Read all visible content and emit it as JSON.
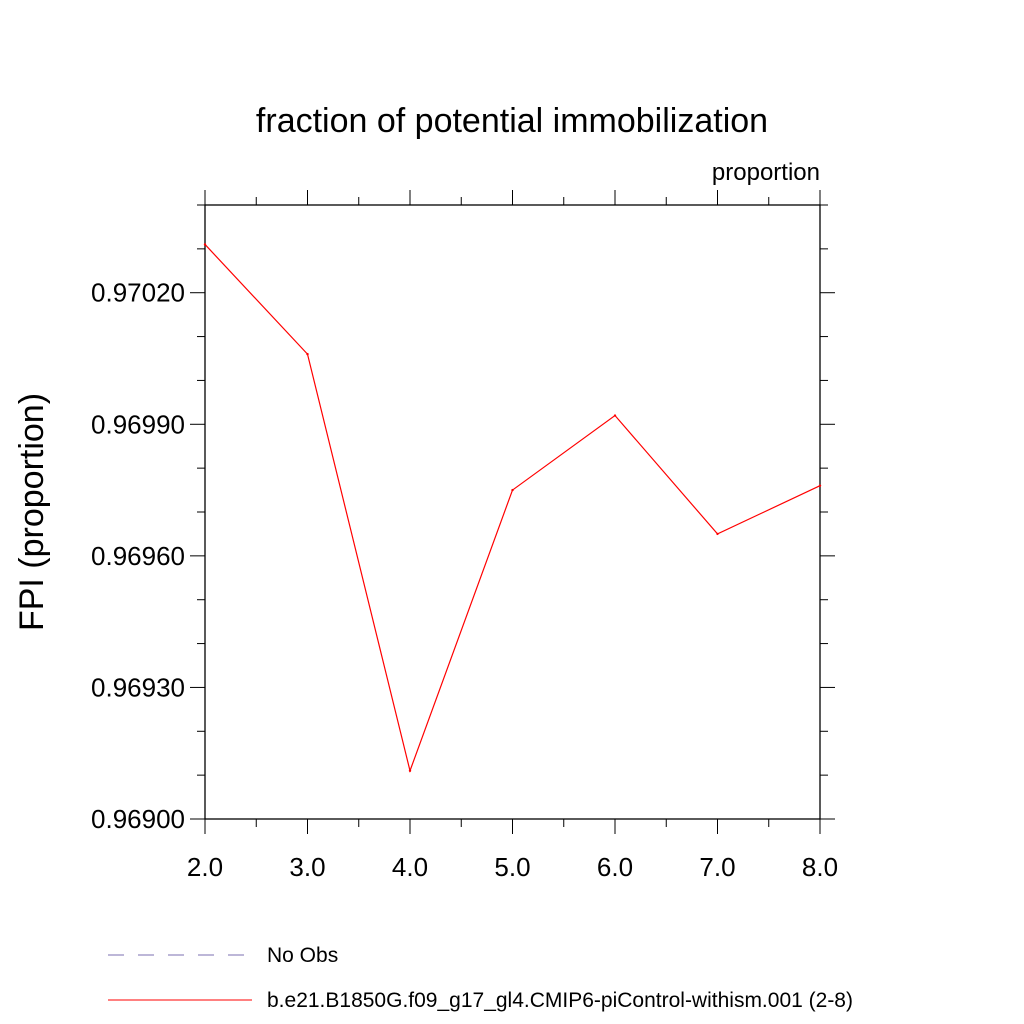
{
  "chart_data": {
    "type": "line",
    "title": "fraction of potential immobilization",
    "units_label": "proportion",
    "ylabel": "FPI  (proportion)",
    "xlabel": "",
    "x": [
      2.0,
      3.0,
      4.0,
      5.0,
      6.0,
      7.0,
      8.0
    ],
    "xlim": [
      2.0,
      8.0
    ],
    "ylim": [
      0.969,
      0.9704
    ],
    "x_ticks": [
      "2.0",
      "3.0",
      "4.0",
      "5.0",
      "6.0",
      "7.0",
      "8.0"
    ],
    "x_tick_values": [
      2,
      3,
      4,
      5,
      6,
      7,
      8
    ],
    "y_ticks": [
      "0.96900",
      "0.96930",
      "0.96960",
      "0.96990",
      "0.97020"
    ],
    "y_tick_values": [
      0.969,
      0.9693,
      0.9696,
      0.9699,
      0.9702
    ],
    "series": [
      {
        "name": "b.e21.B1850G.f09_g17_gl4.CMIP6-piControl-withism.001 (2-8)",
        "color": "#ff0000",
        "dash": "solid",
        "values": [
          0.97031,
          0.97006,
          0.96911,
          0.96975,
          0.96992,
          0.96965,
          0.96976
        ]
      }
    ],
    "legend": [
      {
        "label": "No Obs",
        "color": "#7b6fb0",
        "dash": "dashed"
      },
      {
        "label": "b.e21.B1850G.f09_g17_gl4.CMIP6-piControl-withism.001 (2-8)",
        "color": "#ff0000",
        "dash": "solid"
      }
    ],
    "legend_placement": "bottom",
    "grid": false
  }
}
